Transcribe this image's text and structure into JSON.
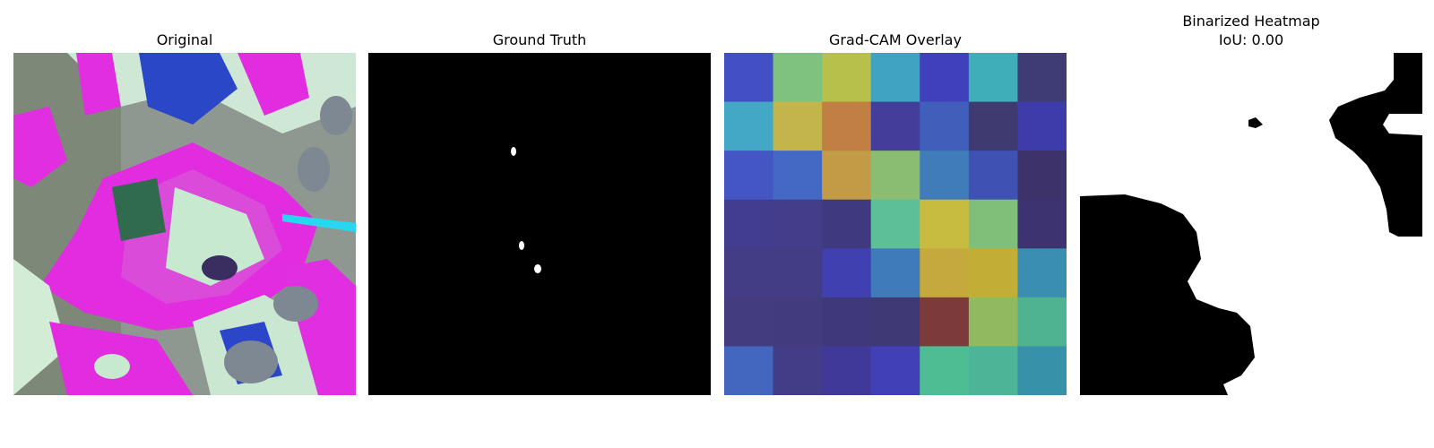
{
  "panels": {
    "original": {
      "title": "Original"
    },
    "ground_truth": {
      "title": "Ground Truth"
    },
    "gradcam": {
      "title": "Grad-CAM Overlay",
      "grid": [
        [
          "#4350c5",
          "#7fc17f",
          "#b7c04b",
          "#40a4c0",
          "#4040bc",
          "#40aeb8",
          "#3f3b74"
        ],
        [
          "#42a8c6",
          "#c3b54b",
          "#c17f43",
          "#423e9a",
          "#3f5fbb",
          "#3f3b71",
          "#3d3caa"
        ],
        [
          "#4356c3",
          "#4369c4",
          "#c39a45",
          "#8abc71",
          "#3f7cb9",
          "#3f51b3",
          "#3d336a"
        ],
        [
          "#433d8f",
          "#433d8a",
          "#3f3a7f",
          "#5dbf98",
          "#c7bc3f",
          "#7fbf79",
          "#3d3370"
        ],
        [
          "#433d86",
          "#423d84",
          "#4040b0",
          "#3f7bbb",
          "#c6a93d",
          "#c2ae36",
          "#3a8eb0"
        ],
        [
          "#433d80",
          "#423b7d",
          "#3f387b",
          "#3f3a76",
          "#7d3a3a",
          "#90ba60",
          "#4fb391"
        ],
        [
          "#4367bf",
          "#423d86",
          "#41399a",
          "#4140b5",
          "#4fbd93",
          "#4cb597",
          "#3791a8"
        ]
      ]
    },
    "binarized": {
      "title": "Binarized Heatmap\nIoU: 0.00"
    }
  },
  "colors": {
    "mask_background": "#000000",
    "mask_foreground": "#ffffff",
    "original_magenta": "#e22ce0",
    "original_mint": "#c5ecd0",
    "original_gray": "#8a939a",
    "original_blue": "#2b46c8"
  }
}
